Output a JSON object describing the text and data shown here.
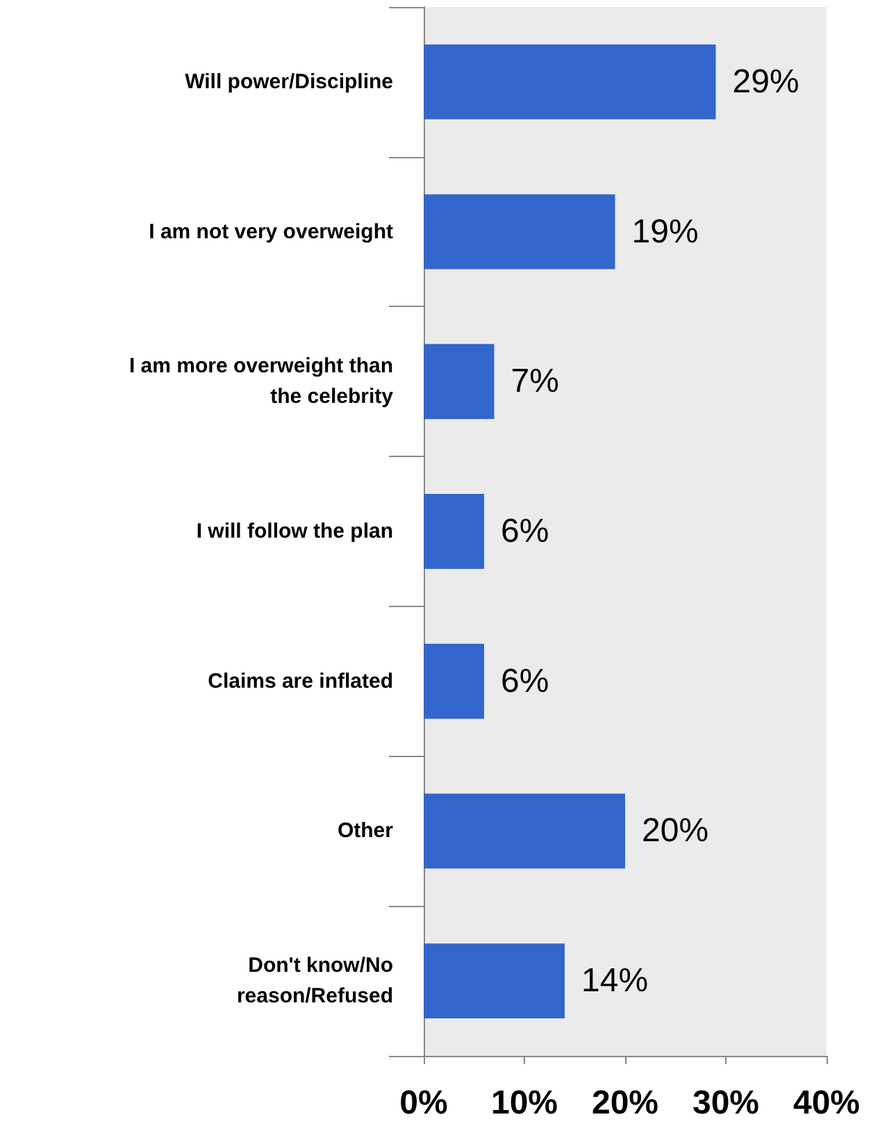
{
  "chart_data": {
    "type": "bar",
    "orientation": "horizontal",
    "categories": [
      "Will power/Discipline",
      "I am not very overweight",
      "I am more overweight than the celebrity",
      "I will follow the plan",
      "Claims are inflated",
      "Other",
      "Don't know/No reason/Refused"
    ],
    "values": [
      29,
      19,
      7,
      6,
      6,
      20,
      14
    ],
    "value_labels": [
      "29%",
      "19%",
      "7%",
      "6%",
      "6%",
      "20%",
      "14%"
    ],
    "color": "#3366cc",
    "xlim": [
      0,
      40
    ],
    "xticks": [
      {
        "value": 0,
        "label": "0%"
      },
      {
        "value": 10,
        "label": "10%"
      },
      {
        "value": 20,
        "label": "20%"
      },
      {
        "value": 30,
        "label": "30%"
      },
      {
        "value": 40,
        "label": "40%"
      }
    ],
    "grid": false
  }
}
